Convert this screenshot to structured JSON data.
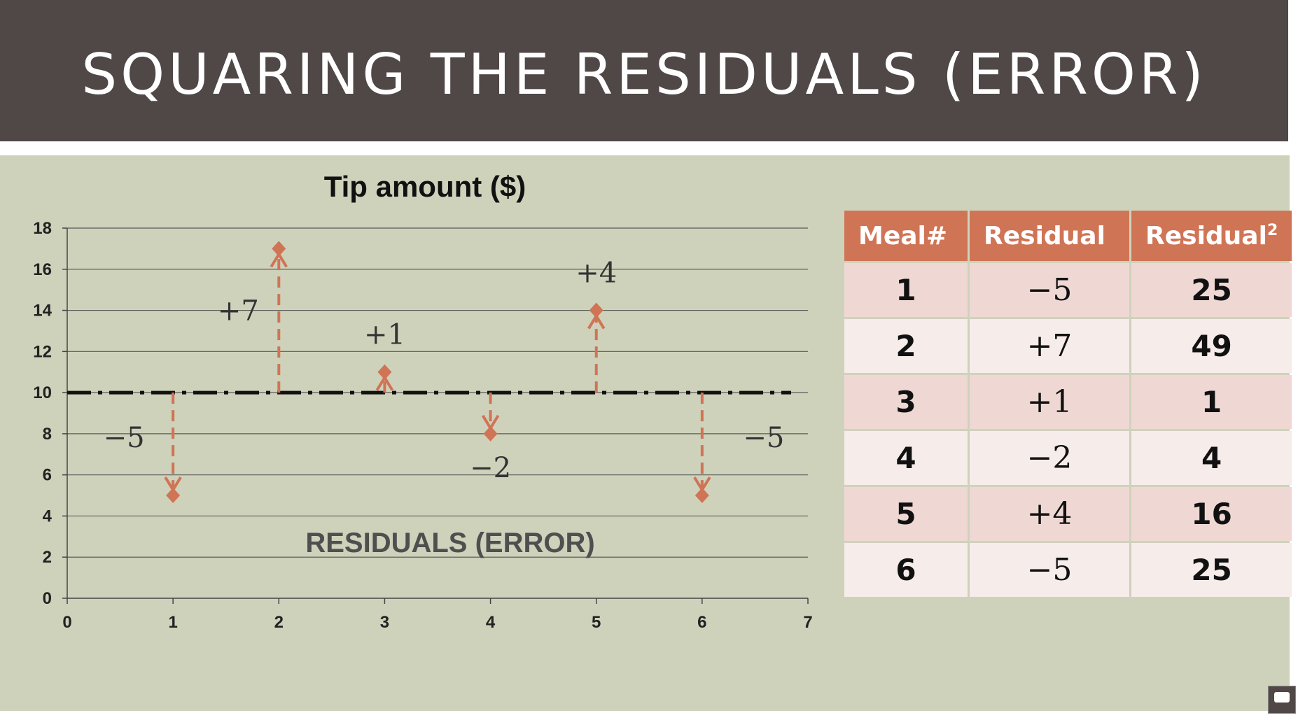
{
  "slide_title": "SQUARING THE RESIDUALS (ERROR)",
  "chart_data": {
    "type": "scatter",
    "title": "Tip amount ($)",
    "overlay_label": "RESIDUALS (ERROR)",
    "xlim": [
      0,
      7
    ],
    "ylim": [
      0,
      18
    ],
    "x_ticks": [
      0,
      1,
      2,
      3,
      4,
      5,
      6,
      7
    ],
    "y_ticks": [
      0,
      2,
      4,
      6,
      8,
      10,
      12,
      14,
      16,
      18
    ],
    "grid": true,
    "mean_line": 10,
    "points": [
      {
        "x": 1,
        "y": 5,
        "residual_label": "−5"
      },
      {
        "x": 2,
        "y": 17,
        "residual_label": "+7"
      },
      {
        "x": 3,
        "y": 11,
        "residual_label": "+1"
      },
      {
        "x": 4,
        "y": 8,
        "residual_label": "−2"
      },
      {
        "x": 5,
        "y": 14,
        "residual_label": "+4"
      },
      {
        "x": 6,
        "y": 5,
        "residual_label": "−5"
      }
    ],
    "colors": {
      "points": "#d07456",
      "mean_line": "#111111",
      "grid": "#5a5a5a"
    }
  },
  "table": {
    "headers": {
      "meal": "Meal#",
      "residual": "Residual",
      "residual_sq": "Residual",
      "residual_sq_sup": "2"
    },
    "rows": [
      {
        "meal": "1",
        "residual": "−5",
        "residual_sq": "25"
      },
      {
        "meal": "2",
        "residual": "+7",
        "residual_sq": "49"
      },
      {
        "meal": "3",
        "residual": "+1",
        "residual_sq": "1"
      },
      {
        "meal": "4",
        "residual": "−2",
        "residual_sq": "4"
      },
      {
        "meal": "5",
        "residual": "+4",
        "residual_sq": "16"
      },
      {
        "meal": "6",
        "residual": "−5",
        "residual_sq": "25"
      }
    ]
  },
  "colors": {
    "title_bar": "#504747",
    "background": "#cfd2bb",
    "header": "#d07456",
    "row_odd": "#efd8d4",
    "row_even": "#f6ecea"
  },
  "icons": {
    "subscribe_badge": "play-button-icon"
  }
}
